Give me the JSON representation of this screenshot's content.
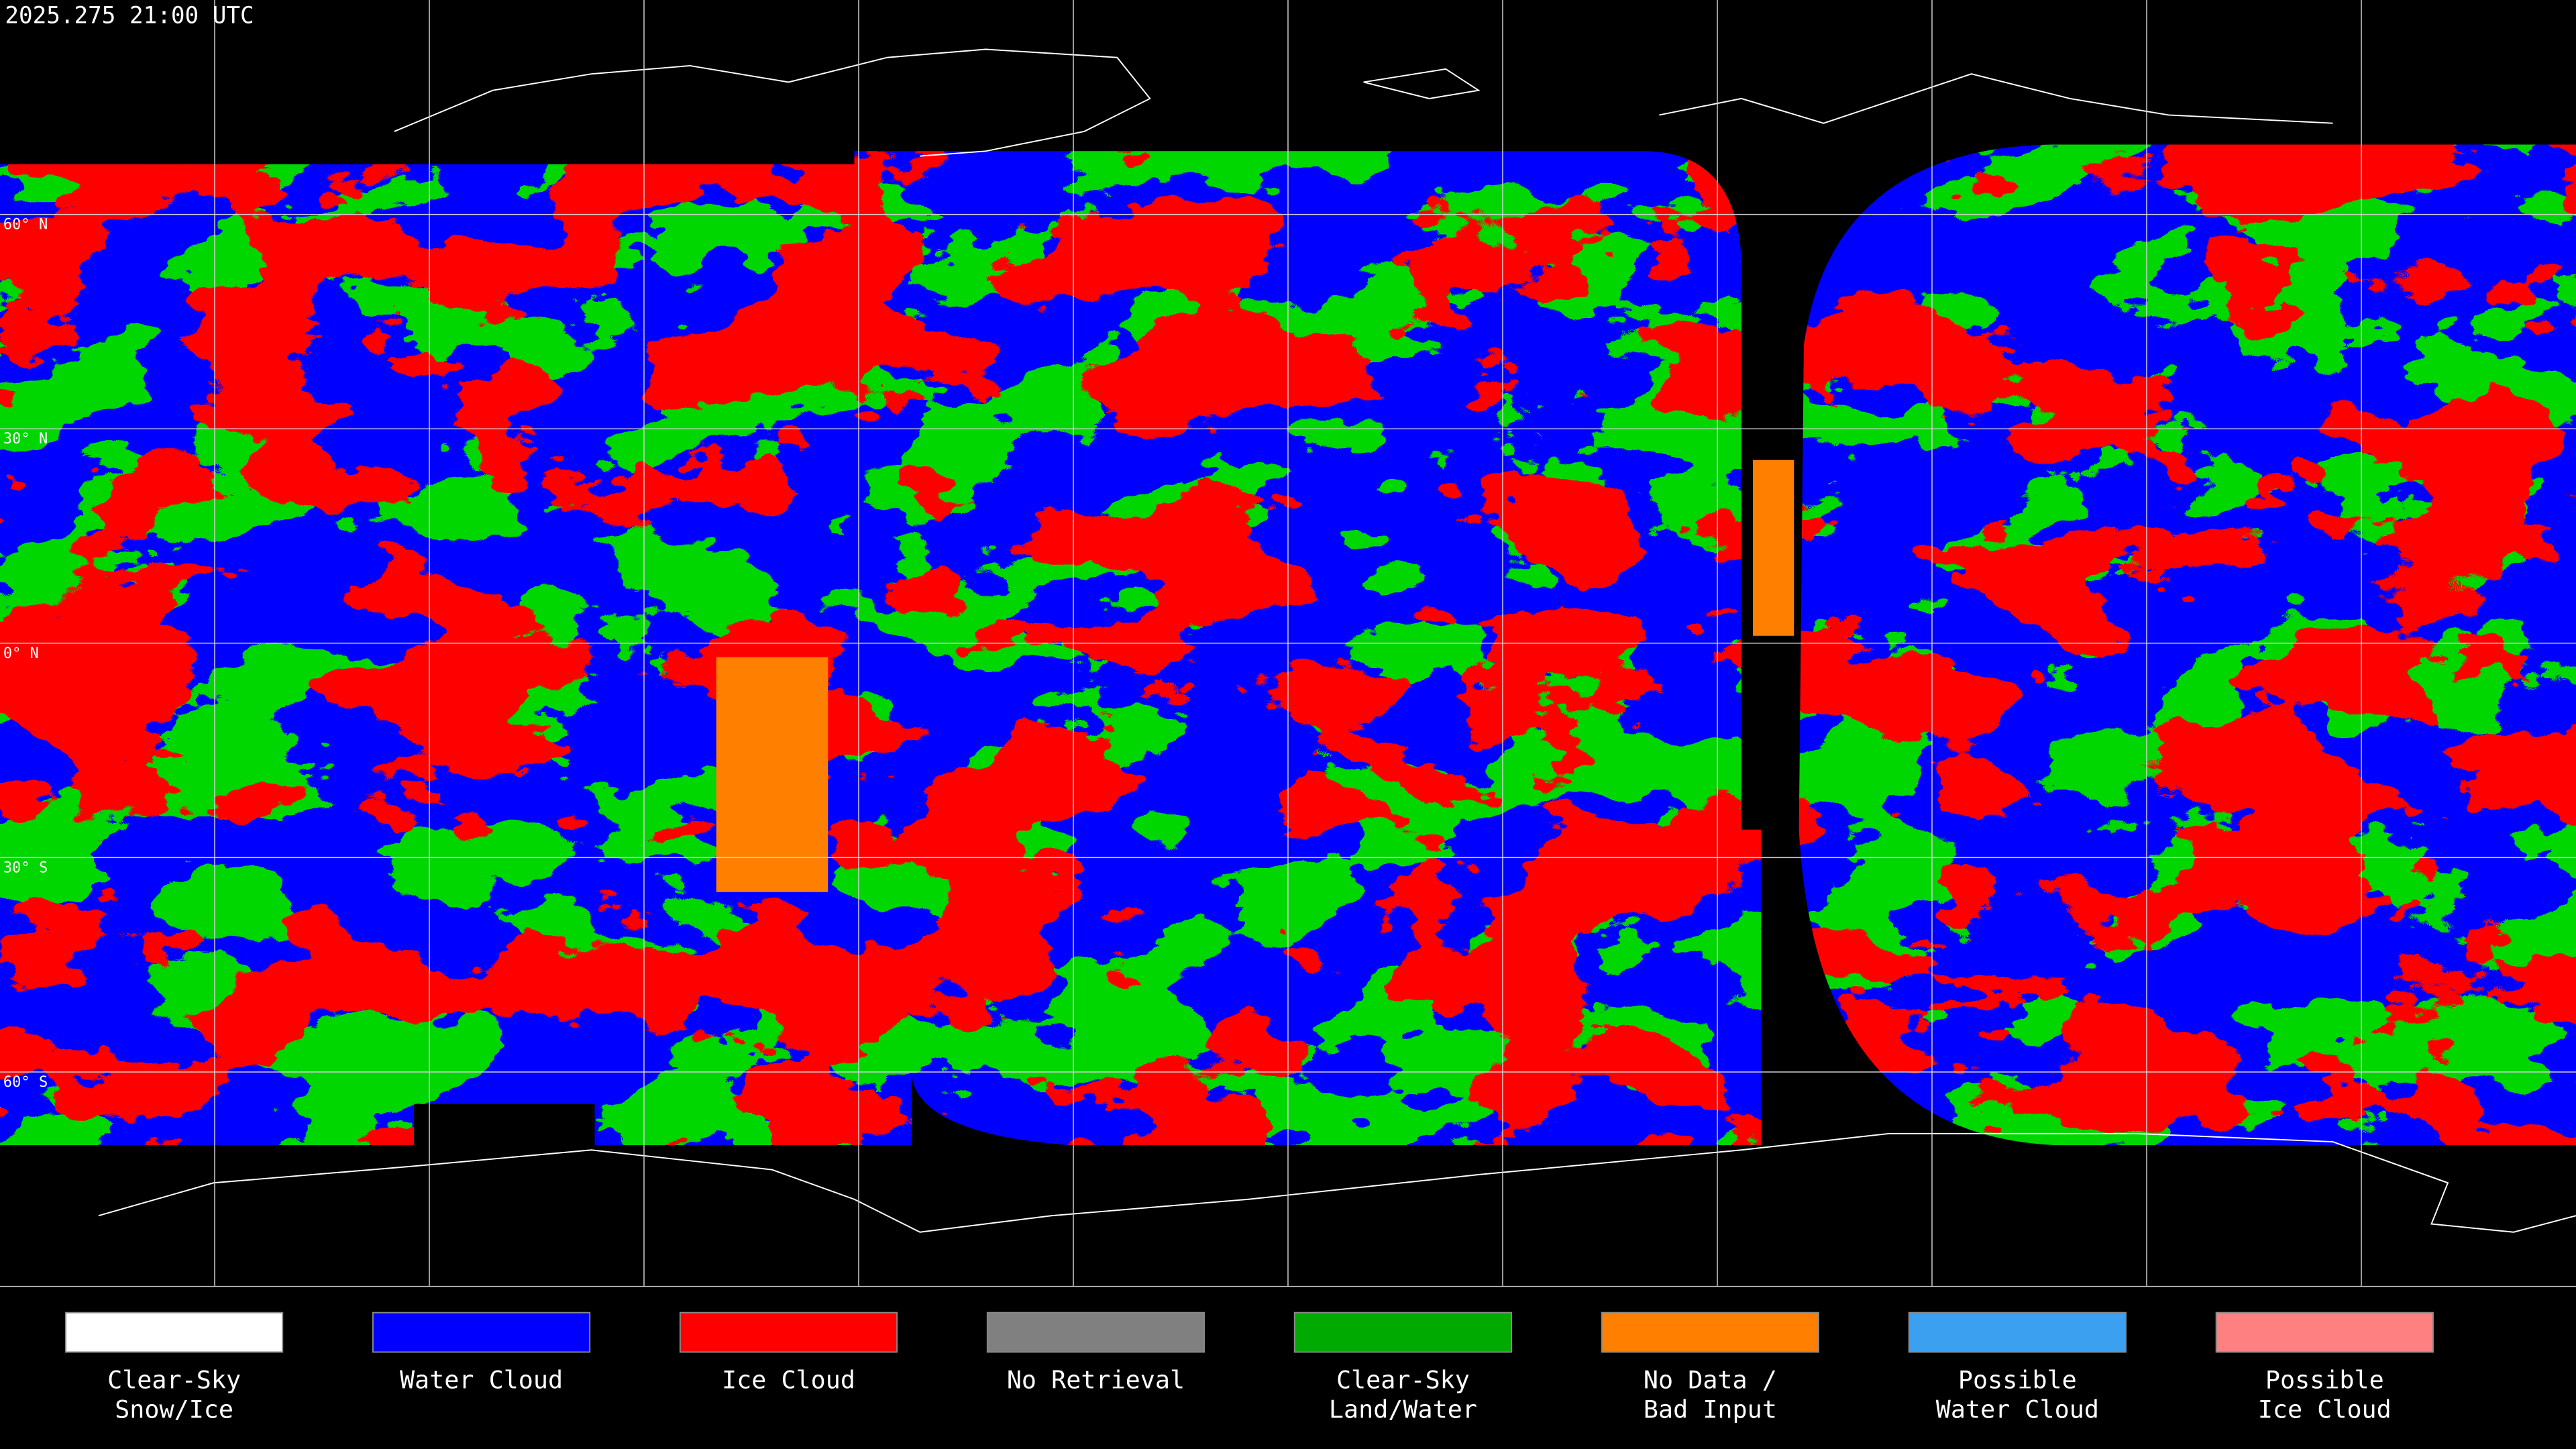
{
  "header": {
    "timestamp": "2025.275 21:00 UTC"
  },
  "map": {
    "latitude_labels": [
      "60° N",
      "30° N",
      "0° N",
      "30° S",
      "60° S"
    ]
  },
  "legend": {
    "items": [
      {
        "label": [
          "Clear-Sky",
          "Snow/Ice"
        ],
        "color": "#ffffff"
      },
      {
        "label": [
          "Water Cloud"
        ],
        "color": "#0000ff"
      },
      {
        "label": [
          "Ice Cloud"
        ],
        "color": "#ff0000"
      },
      {
        "label": [
          "No Retrieval"
        ],
        "color": "#808080"
      },
      {
        "label": [
          "Clear-Sky",
          "Land/Water"
        ],
        "color": "#00aa00"
      },
      {
        "label": [
          "No Data /",
          "Bad Input"
        ],
        "color": "#ff8000"
      },
      {
        "label": [
          "Possible",
          "Water Cloud"
        ],
        "color": "#3ca0f0"
      },
      {
        "label": [
          "Possible",
          "Ice Cloud"
        ],
        "color": "#ff8080"
      }
    ]
  }
}
